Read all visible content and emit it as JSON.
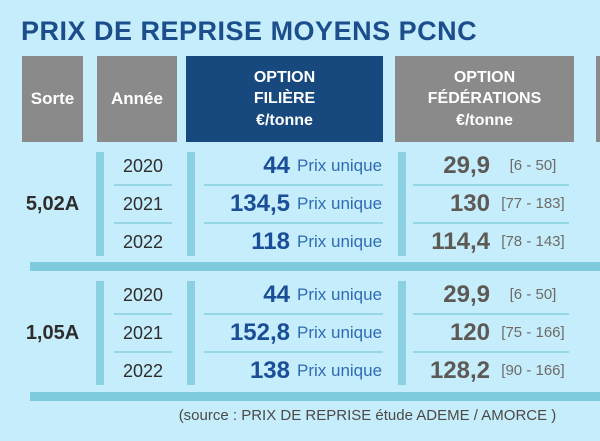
{
  "title": "PRIX DE REPRISE MOYENS PCNC",
  "headers": {
    "sorte": "Sorte",
    "annee": "Année",
    "filiere_lines": [
      "OPTION",
      "FILIÈRE",
      "€/tonne"
    ],
    "federations_lines": [
      "OPTION",
      "FÉDÉRATIONS",
      "€/tonne"
    ]
  },
  "chart_data": {
    "type": "table",
    "title": "PRIX DE REPRISE MOYENS PCNC",
    "columns": [
      "Sorte",
      "Année",
      "OPTION FILIÈRE €/tonne",
      "OPTION FÉDÉRATIONS €/tonne"
    ],
    "groups": [
      {
        "sorte": "5,02A",
        "rows": [
          {
            "annee": "2020",
            "option_filiere": "44",
            "filiere_note": "Prix unique",
            "option_federations": "29,9",
            "federations_range": "[6 - 50]"
          },
          {
            "annee": "2021",
            "option_filiere": "134,5",
            "filiere_note": "Prix unique",
            "option_federations": "130",
            "federations_range": "[77 - 183]"
          },
          {
            "annee": "2022",
            "option_filiere": "118",
            "filiere_note": "Prix unique",
            "option_federations": "114,4",
            "federations_range": "[78 - 143]"
          }
        ]
      },
      {
        "sorte": "1,05A",
        "rows": [
          {
            "annee": "2020",
            "option_filiere": "44",
            "filiere_note": "Prix unique",
            "option_federations": "29,9",
            "federations_range": "[6 - 50]"
          },
          {
            "annee": "2021",
            "option_filiere": "152,8",
            "filiere_note": "Prix unique",
            "option_federations": "120",
            "federations_range": "[75 - 166]"
          },
          {
            "annee": "2022",
            "option_filiere": "138",
            "filiere_note": "Prix unique",
            "option_federations": "128,2",
            "federations_range": "[90 - 166]"
          }
        ]
      }
    ]
  },
  "source": "(source : PRIX DE REPRISE étude ADEME / AMORCE )",
  "colors": {
    "background": "#c5edfb",
    "title_blue": "#1b4e8a",
    "header_gray": "#8a8a8a",
    "header_blue": "#17497e",
    "accent_bar": "#7ecbdd",
    "divider": "#96d7e6",
    "filiere_value_blue": "#1a4f97",
    "note_blue": "#2f6cb3",
    "federations_value_gray": "#5d5955"
  }
}
